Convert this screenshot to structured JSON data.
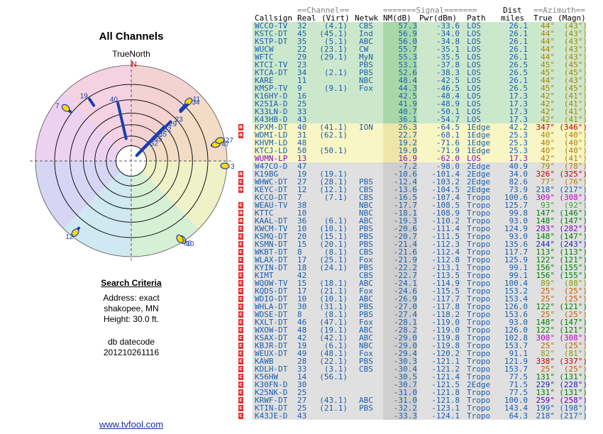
{
  "left_panel": {
    "title": "All Channels",
    "compass": "TrueNorth",
    "north": "N",
    "criteria_heading": "Search Criteria",
    "address": "Address: exact",
    "location": "shakopee, MN",
    "height": "Height: 30.0 ft.",
    "db_label": "db datecode",
    "db_code": "201210261116",
    "link": "www.tvfool.com"
  },
  "table_header": {
    "channel_group": "==Channel==",
    "signal_group": "=======Signal=======",
    "dist_group": "Dist",
    "azimuth_group": "==Azimuth==",
    "callsign": "Callsign",
    "real": "Real",
    "virt": "(Virt)",
    "netwk": "Netwk",
    "nm": "NM(dB)",
    "pwr": "Pwr(dBm)",
    "path": "Path",
    "miles": "miles",
    "true": "True",
    "magn": "(Magn)"
  },
  "colors": {
    "green": "#cce8cc",
    "yellow": "#f8f6c4",
    "gray": "#e0e0e0",
    "callsign_blue": "#1a5fb0",
    "callsign_purple": "#8010c0"
  },
  "chart_data": {
    "type": "table",
    "columns": [
      "Callsign",
      "Real",
      "Virt",
      "Netwk",
      "NM(dB)",
      "Pwr(dBm)",
      "Path",
      "Dist miles",
      "True",
      "Magn"
    ],
    "rows": [
      {
        "call": "WCCO-TV",
        "real": "32",
        "virt": "(4.1)",
        "net": "CBS",
        "nm": 57.3,
        "pwr": "-33.6",
        "path": "LOS",
        "dist": "26.1",
        "az": "44°",
        "mag": "(43°)",
        "zone": "green",
        "mk": "",
        "azc": "#b08000"
      },
      {
        "call": "KSTC-DT",
        "real": "45",
        "virt": "(45.1)",
        "net": "Ind",
        "nm": 56.9,
        "pwr": "-34.0",
        "path": "LOS",
        "dist": "26.1",
        "az": "44°",
        "mag": "(43°)",
        "zone": "green",
        "mk": "",
        "azc": "#b08000"
      },
      {
        "call": "KSTP-DT",
        "real": "35",
        "virt": "(5.1)",
        "net": "ABC",
        "nm": 56.0,
        "pwr": "-34.8",
        "path": "LOS",
        "dist": "26.1",
        "az": "44°",
        "mag": "(43°)",
        "zone": "green",
        "mk": "",
        "azc": "#b08000"
      },
      {
        "call": "WUCW",
        "real": "22",
        "virt": "(23.1)",
        "net": "CW",
        "nm": 55.7,
        "pwr": "-35.1",
        "path": "LOS",
        "dist": "26.1",
        "az": "44°",
        "mag": "(43°)",
        "zone": "green",
        "mk": "",
        "azc": "#b08000"
      },
      {
        "call": "WFTC",
        "real": "29",
        "virt": "(29.1)",
        "net": "MyN",
        "nm": 55.3,
        "pwr": "-35.5",
        "path": "LOS",
        "dist": "26.1",
        "az": "44°",
        "mag": "(43°)",
        "zone": "green",
        "mk": "",
        "azc": "#b08000"
      },
      {
        "call": "KTCI-TV",
        "real": "23",
        "virt": "",
        "net": "PBS",
        "nm": 53.1,
        "pwr": "-37.8",
        "path": "LOS",
        "dist": "26.5",
        "az": "45°",
        "mag": "(45°)",
        "zone": "green",
        "mk": "",
        "azc": "#b08000"
      },
      {
        "call": "KTCA-DT",
        "real": "34",
        "virt": "(2.1)",
        "net": "PBS",
        "nm": 52.6,
        "pwr": "-38.3",
        "path": "LOS",
        "dist": "26.5",
        "az": "45°",
        "mag": "(45°)",
        "zone": "green",
        "mk": "",
        "azc": "#b08000"
      },
      {
        "call": "KARE",
        "real": "11",
        "virt": "",
        "net": "NBC",
        "nm": 48.4,
        "pwr": "-42.5",
        "path": "LOS",
        "dist": "26.1",
        "az": "44°",
        "mag": "(43°)",
        "zone": "green",
        "mk": "",
        "azc": "#b08000"
      },
      {
        "call": "KMSP-TV",
        "real": "9",
        "virt": "(9.1)",
        "net": "Fox",
        "nm": 44.3,
        "pwr": "-46.5",
        "path": "LOS",
        "dist": "26.5",
        "az": "45°",
        "mag": "(45°)",
        "zone": "green",
        "mk": "",
        "azc": "#b08000"
      },
      {
        "call": "K16HY-D",
        "real": "16",
        "virt": "",
        "net": "",
        "nm": 42.5,
        "pwr": "-48.4",
        "path": "LOS",
        "dist": "17.3",
        "az": "42°",
        "mag": "(41°)",
        "zone": "green",
        "mk": "",
        "azc": "#b08000"
      },
      {
        "call": "K25IA-D",
        "real": "25",
        "virt": "",
        "net": "",
        "nm": 41.9,
        "pwr": "-48.9",
        "path": "LOS",
        "dist": "17.3",
        "az": "42°",
        "mag": "(41°)",
        "zone": "green",
        "mk": "",
        "azc": "#b08000"
      },
      {
        "call": "K33LN-D",
        "real": "33",
        "virt": "",
        "net": "",
        "nm": 40.7,
        "pwr": "-50.1",
        "path": "LOS",
        "dist": "17.3",
        "az": "42°",
        "mag": "(41°)",
        "zone": "green",
        "mk": "",
        "azc": "#b08000"
      },
      {
        "call": "K43HB-D",
        "real": "43",
        "virt": "",
        "net": "",
        "nm": 36.1,
        "pwr": "-54.7",
        "path": "LOS",
        "dist": "17.3",
        "az": "42°",
        "mag": "(41°)",
        "zone": "green",
        "mk": "",
        "azc": "#b08000"
      },
      {
        "call": "KPXM-DT",
        "real": "40",
        "virt": "(41.1)",
        "net": "ION",
        "nm": 26.3,
        "pwr": "-64.5",
        "path": "1Edge",
        "dist": "42.2",
        "az": "347°",
        "mag": "(346°)",
        "zone": "yellow",
        "mk": "a",
        "azc": "#c00000"
      },
      {
        "call": "WDMI-LD",
        "real": "31",
        "virt": "(62.1)",
        "net": "",
        "nm": 22.7,
        "pwr": "-68.1",
        "path": "1Edge",
        "dist": "25.3",
        "az": "40°",
        "mag": "(40°)",
        "zone": "yellow",
        "mk": "a",
        "azc": "#b08000"
      },
      {
        "call": "KHVM-LD",
        "real": "48",
        "virt": "",
        "net": "",
        "nm": 19.2,
        "pwr": "-71.6",
        "path": "1Edge",
        "dist": "25.3",
        "az": "40°",
        "mag": "(40°)",
        "zone": "yellow",
        "mk": "",
        "azc": "#b08000"
      },
      {
        "call": "KTCJ-LD",
        "real": "50",
        "virt": "(50.1)",
        "net": "",
        "nm": 19.0,
        "pwr": "-71.9",
        "path": "1Edge",
        "dist": "25.3",
        "az": "40°",
        "mag": "(40°)",
        "zone": "yellow",
        "mk": "",
        "azc": "#b08000"
      },
      {
        "call": "WUMN-LP",
        "real": "13",
        "virt": "",
        "net": "",
        "nm": 16.9,
        "pwr": "-62.0",
        "path": "LOS",
        "dist": "17.3",
        "az": "42°",
        "mag": "(41°)",
        "zone": "yellow",
        "mk": "",
        "azc": "#b08000",
        "purple": true
      },
      {
        "call": "W47CO-D",
        "real": "47",
        "virt": "",
        "net": "",
        "nm": -7.2,
        "pwr": "-98.0",
        "path": "2Edge",
        "dist": "40.9",
        "az": "79°",
        "mag": "(78°)",
        "zone": "gray",
        "mk": "",
        "azc": "#b08000"
      },
      {
        "call": "K19BG",
        "real": "19",
        "virt": "(19.1)",
        "net": "",
        "nm": -10.6,
        "pwr": "-101.4",
        "path": "2Edge",
        "dist": "34.0",
        "az": "326°",
        "mag": "(325°)",
        "zone": "gray",
        "mk": "a",
        "azc": "#c00000"
      },
      {
        "call": "WHWC-DT",
        "real": "27",
        "virt": "(28.1)",
        "net": "PBS",
        "nm": -12.4,
        "pwr": "-103.2",
        "path": "2Edge",
        "dist": "82.6",
        "az": "77°",
        "mag": "(76°)",
        "zone": "gray",
        "mk": "c",
        "azc": "#b08000"
      },
      {
        "call": "KEYC-DT",
        "real": "12",
        "virt": "(12.1)",
        "net": "CBS",
        "nm": -13.6,
        "pwr": "-104.5",
        "path": "2Edge",
        "dist": "73.9",
        "az": "218°",
        "mag": "(217°)",
        "zone": "gray",
        "mk": "a",
        "azc": "#1a5fb0"
      },
      {
        "call": "KCCO-DT",
        "real": "7",
        "virt": "(7.1)",
        "net": "CBS",
        "nm": -16.5,
        "pwr": "-107.4",
        "path": "Tropo",
        "dist": "100.6",
        "az": "309°",
        "mag": "(308°)",
        "zone": "gray",
        "mk": "",
        "azc": "#c000c0"
      },
      {
        "call": "WEAU-TV",
        "real": "38",
        "virt": "",
        "net": "NBC",
        "nm": -17.7,
        "pwr": "-108.5",
        "path": "Tropo",
        "dist": "125.7",
        "az": "93°",
        "mag": "(92°)",
        "zone": "gray",
        "mk": "c",
        "azc": "#40a040"
      },
      {
        "call": "KTTC",
        "real": "10",
        "virt": "",
        "net": "NBC",
        "nm": -18.1,
        "pwr": "-108.9",
        "path": "Tropo",
        "dist": "99.8",
        "az": "147°",
        "mag": "(146°)",
        "zone": "gray",
        "mk": "a",
        "azc": "#008000"
      },
      {
        "call": "KAAL-DT",
        "real": "36",
        "virt": "(6.1)",
        "net": "ABC",
        "nm": -19.3,
        "pwr": "-110.2",
        "path": "Tropo",
        "dist": "93.0",
        "az": "148°",
        "mag": "(147°)",
        "zone": "gray",
        "mk": "a",
        "azc": "#008000"
      },
      {
        "call": "KWCM-TV",
        "real": "10",
        "virt": "(10.1)",
        "net": "PBS",
        "nm": -20.6,
        "pwr": "-111.4",
        "path": "Tropo",
        "dist": "124.9",
        "az": "283°",
        "mag": "(282°)",
        "zone": "gray",
        "mk": "c",
        "azc": "#8000c0"
      },
      {
        "call": "KSMQ-DT",
        "real": "20",
        "virt": "(15.1)",
        "net": "PBS",
        "nm": -20.7,
        "pwr": "-111.5",
        "path": "Tropo",
        "dist": "93.0",
        "az": "148°",
        "mag": "(147°)",
        "zone": "gray",
        "mk": "c",
        "azc": "#008000"
      },
      {
        "call": "KSMN-DT",
        "real": "15",
        "virt": "(20.1)",
        "net": "PBS",
        "nm": -21.4,
        "pwr": "-112.3",
        "path": "Tropo",
        "dist": "135.6",
        "az": "244°",
        "mag": "(243°)",
        "zone": "gray",
        "mk": "c",
        "azc": "#2020c0"
      },
      {
        "call": "WKBT-DT",
        "real": "8",
        "virt": "(8.1)",
        "net": "CBS",
        "nm": -21.6,
        "pwr": "-112.4",
        "path": "Tropo",
        "dist": "117.7",
        "az": "113°",
        "mag": "(113°)",
        "zone": "gray",
        "mk": "c",
        "azc": "#008000"
      },
      {
        "call": "WLAX-DT",
        "real": "17",
        "virt": "(25.1)",
        "net": "Fox",
        "nm": -21.9,
        "pwr": "-112.8",
        "path": "Tropo",
        "dist": "125.9",
        "az": "122°",
        "mag": "(121°)",
        "zone": "gray",
        "mk": "c",
        "azc": "#008000"
      },
      {
        "call": "KYIN-DT",
        "real": "18",
        "virt": "(24.1)",
        "net": "PBS",
        "nm": -22.2,
        "pwr": "-113.1",
        "path": "Tropo",
        "dist": "99.1",
        "az": "156°",
        "mag": "(155°)",
        "zone": "gray",
        "mk": "c",
        "azc": "#008000"
      },
      {
        "call": "KIMT",
        "real": "42",
        "virt": "",
        "net": "CBS",
        "nm": -22.7,
        "pwr": "-113.5",
        "path": "Tropo",
        "dist": "99.1",
        "az": "156°",
        "mag": "(155°)",
        "zone": "gray",
        "mk": "c",
        "azc": "#008000"
      },
      {
        "call": "WQOW-TV",
        "real": "15",
        "virt": "(18.1)",
        "net": "ABC",
        "nm": -24.1,
        "pwr": "-114.9",
        "path": "Tropo",
        "dist": "100.4",
        "az": "89°",
        "mag": "(88°)",
        "zone": "gray",
        "mk": "c",
        "azc": "#80a000"
      },
      {
        "call": "KQDS-DT",
        "real": "17",
        "virt": "(21.1)",
        "net": "Fox",
        "nm": -24.6,
        "pwr": "-115.5",
        "path": "Tropo",
        "dist": "153.2",
        "az": "25°",
        "mag": "(25°)",
        "zone": "gray",
        "mk": "c",
        "azc": "#c06000"
      },
      {
        "call": "WDIO-DT",
        "real": "10",
        "virt": "(10.1)",
        "net": "ABC",
        "nm": -26.9,
        "pwr": "-117.7",
        "path": "Tropo",
        "dist": "153.4",
        "az": "25°",
        "mag": "(25°)",
        "zone": "gray",
        "mk": "c",
        "azc": "#c06000"
      },
      {
        "call": "WHLA-DT",
        "real": "30",
        "virt": "(31.1)",
        "net": "PBS",
        "nm": -27.0,
        "pwr": "-117.8",
        "path": "Tropo",
        "dist": "126.0",
        "az": "122°",
        "mag": "(121°)",
        "zone": "gray",
        "mk": "c",
        "azc": "#008000"
      },
      {
        "call": "WDSE-DT",
        "real": "8",
        "virt": "(8.1)",
        "net": "PBS",
        "nm": -27.4,
        "pwr": "-118.2",
        "path": "Tropo",
        "dist": "153.6",
        "az": "25°",
        "mag": "(25°)",
        "zone": "gray",
        "mk": "c",
        "azc": "#c06000"
      },
      {
        "call": "KXLT-DT",
        "real": "46",
        "virt": "(47.1)",
        "net": "Fox",
        "nm": -28.1,
        "pwr": "-119.0",
        "path": "Tropo",
        "dist": "93.0",
        "az": "148°",
        "mag": "(147°)",
        "zone": "gray",
        "mk": "c",
        "azc": "#008000"
      },
      {
        "call": "WXOW-DT",
        "real": "48",
        "virt": "(19.1)",
        "net": "ABC",
        "nm": -28.2,
        "pwr": "-119.0",
        "path": "Tropo",
        "dist": "126.0",
        "az": "122°",
        "mag": "(121°)",
        "zone": "gray",
        "mk": "c",
        "azc": "#008000"
      },
      {
        "call": "KSAX-DT",
        "real": "42",
        "virt": "(42.1)",
        "net": "ABC",
        "nm": -29.0,
        "pwr": "-119.8",
        "path": "Tropo",
        "dist": "102.8",
        "az": "308°",
        "mag": "(308°)",
        "zone": "gray",
        "mk": "c",
        "azc": "#c000c0"
      },
      {
        "call": "KBJR-DT",
        "real": "19",
        "virt": "(6.1)",
        "net": "NBC",
        "nm": -29.0,
        "pwr": "-119.8",
        "path": "Tropo",
        "dist": "153.7",
        "az": "25°",
        "mag": "(25°)",
        "zone": "gray",
        "mk": "c",
        "azc": "#c06000"
      },
      {
        "call": "WEUX-DT",
        "real": "49",
        "virt": "(48.1)",
        "net": "Fox",
        "nm": -29.4,
        "pwr": "-120.2",
        "path": "Tropo",
        "dist": "91.1",
        "az": "82°",
        "mag": "(81°)",
        "zone": "gray",
        "mk": "c",
        "azc": "#80a000"
      },
      {
        "call": "KAWB",
        "real": "28",
        "virt": "(22.1)",
        "net": "PBS",
        "nm": -30.3,
        "pwr": "-121.1",
        "path": "Tropo",
        "dist": "121.9",
        "az": "338°",
        "mag": "(337°)",
        "zone": "gray",
        "mk": "c",
        "azc": "#c00000"
      },
      {
        "call": "KDLH-DT",
        "real": "33",
        "virt": "(3.1)",
        "net": "CBS",
        "nm": -30.4,
        "pwr": "-121.2",
        "path": "Tropo",
        "dist": "153.7",
        "az": "25°",
        "mag": "(25°)",
        "zone": "gray",
        "mk": "c",
        "azc": "#c06000"
      },
      {
        "call": "K56HW",
        "real": "14",
        "virt": "(56.1)",
        "net": "",
        "nm": -30.5,
        "pwr": "-121.4",
        "path": "Tropo",
        "dist": "77.5",
        "az": "131°",
        "mag": "(131°)",
        "zone": "gray",
        "mk": "c",
        "azc": "#008000"
      },
      {
        "call": "K30FN-D",
        "real": "30",
        "virt": "",
        "net": "",
        "nm": -30.7,
        "pwr": "-121.5",
        "path": "2Edge",
        "dist": "71.5",
        "az": "229°",
        "mag": "(228°)",
        "zone": "gray",
        "mk": "c",
        "azc": "#2020c0"
      },
      {
        "call": "K25NK-D",
        "real": "25",
        "virt": "",
        "net": "",
        "nm": -31.0,
        "pwr": "-121.8",
        "path": "Tropo",
        "dist": "77.5",
        "az": "131°",
        "mag": "(131°)",
        "zone": "gray",
        "mk": "c",
        "azc": "#008000"
      },
      {
        "call": "KRWF-DT",
        "real": "27",
        "virt": "(43.1)",
        "net": "ABC",
        "nm": -31.0,
        "pwr": "-121.8",
        "path": "Tropo",
        "dist": "100.0",
        "az": "259°",
        "mag": "(258°)",
        "zone": "gray",
        "mk": "c",
        "azc": "#6000c0"
      },
      {
        "call": "KTIN-DT",
        "real": "25",
        "virt": "(21.1)",
        "net": "PBS",
        "nm": -32.2,
        "pwr": "-123.1",
        "path": "Tropo",
        "dist": "143.4",
        "az": "199°",
        "mag": "(198°)",
        "zone": "gray",
        "mk": "c",
        "azc": "#1a5fb0"
      },
      {
        "call": "K43JE-D",
        "real": "43",
        "virt": "",
        "net": "",
        "nm": -33.3,
        "pwr": "-124.1",
        "path": "Tropo",
        "dist": "64.3",
        "az": "218°",
        "mag": "(217°)",
        "zone": "gray",
        "mk": "c",
        "azc": "#1a5fb0"
      }
    ],
    "radar_markers": [
      {
        "label": "40",
        "az": 347,
        "r": 0.62,
        "len": 0.38
      },
      {
        "label": "19",
        "az": 326,
        "r": 0.78,
        "len": 0.08
      },
      {
        "label": "7",
        "az": 309,
        "r": 0.88,
        "len": 0.06
      },
      {
        "label": "11",
        "az": 44,
        "r": 0.86,
        "len": 0.12
      },
      {
        "label": "34",
        "az": 45,
        "r": 0.83,
        "len": 0.1
      },
      {
        "label": "23",
        "az": 45,
        "r": 0.58,
        "len": 0.5
      },
      {
        "label": "29",
        "az": 44,
        "r": 0.5,
        "len": 0.4
      },
      {
        "label": "22",
        "az": 44,
        "r": 0.42,
        "len": 0.3
      },
      {
        "label": "35",
        "az": 44,
        "r": 0.35,
        "len": 0.2
      },
      {
        "label": "45",
        "az": 44,
        "r": 0.28,
        "len": 0.14
      },
      {
        "label": "32",
        "az": 44,
        "r": 0.22,
        "len": 0.1
      },
      {
        "label": "47",
        "az": 79,
        "r": 0.9,
        "len": 0.04
      },
      {
        "label": "27",
        "az": 77,
        "r": 0.95,
        "len": 0.03
      },
      {
        "label": "38",
        "az": 93,
        "r": 0.98,
        "len": 0.03
      },
      {
        "label": "12",
        "az": 218,
        "r": 0.95,
        "len": 0.06
      },
      {
        "label": "10",
        "az": 147,
        "r": 0.98,
        "len": 0.03
      },
      {
        "label": "36",
        "az": 148,
        "r": 0.96,
        "len": 0.03
      }
    ]
  }
}
